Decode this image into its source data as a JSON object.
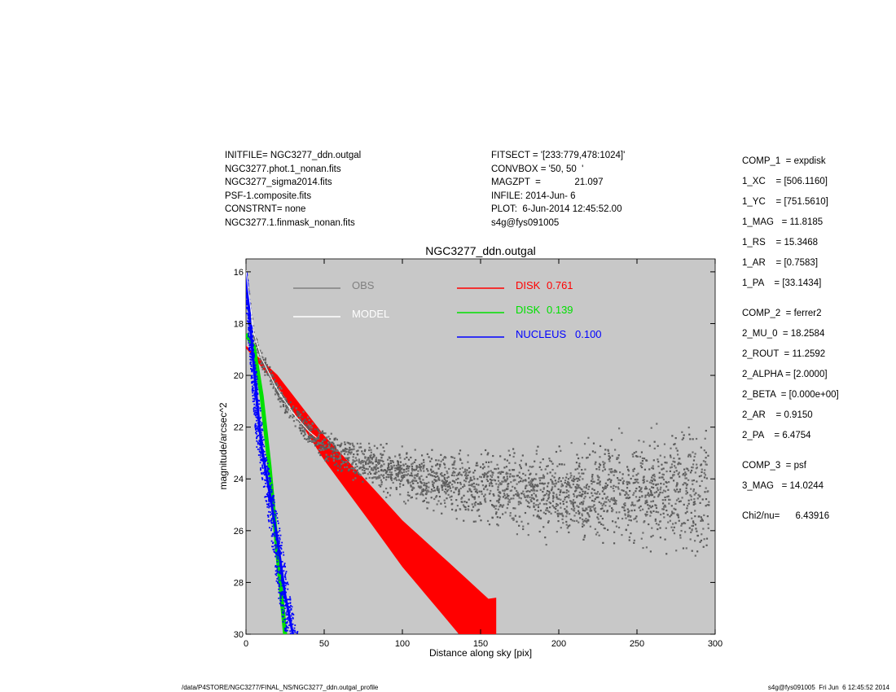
{
  "header_left": [
    "INITFILE= NGC3277_ddn.outgal",
    "NGC3277.phot.1_nonan.fits",
    "NGC3277_sigma2014.fits",
    "PSF-1.composite.fits",
    "CONSTRNT= none",
    "NGC3277.1.finmask_nonan.fits"
  ],
  "header_mid": [
    "FITSECT = '[233:779,478:1024]'",
    "CONVBOX = '50, 50  '",
    "MAGZPT  =             21.097",
    "INFILE: 2014-Jun- 6",
    "PLOT:  6-Jun-2014 12:45:52.00",
    "s4g@fys091005"
  ],
  "components": [
    "COMP_1  = expdisk",
    "1_XC    = [506.1160]",
    "1_YC    = [751.5610]",
    "1_MAG   = 11.8185",
    "1_RS    = 15.3468",
    "1_AR    = [0.7583]",
    "1_PA    = [33.1434]",
    "COMP_2  = ferrer2",
    "2_MU_0  = 18.2584",
    "2_ROUT  = 11.2592",
    "2_ALPHA = [2.0000]",
    "2_BETA  = [0.000e+00]",
    "2_AR    = 0.9150",
    "2_PA    = 6.4754",
    "COMP_3  = psf",
    "3_MAG   = 14.0244",
    "Chi2/nu=      6.43916"
  ],
  "footer": {
    "left": "/data/P4STORE/NGC3277/FINAL_NS/NGC3277_ddn.outgal_profile",
    "right": "s4g@fys091005  Fri Jun  6 12:45:52 2014"
  },
  "chart_data": {
    "type": "scatter",
    "title": "NGC3277_ddn.outgal",
    "xlabel": "Distance along sky [pix]",
    "ylabel": "magnitude/arcsec^2",
    "xlim": [
      0,
      300
    ],
    "ylim": [
      30,
      15.5
    ],
    "y_inverted": true,
    "xticks": [
      0,
      50,
      100,
      150,
      200,
      250,
      300
    ],
    "yticks": [
      16,
      18,
      20,
      22,
      24,
      26,
      28,
      30
    ],
    "background_color": "#c8c8c8",
    "grid": false,
    "legend": [
      {
        "label": "OBS",
        "value": "",
        "color": "#808080"
      },
      {
        "label": "MODEL",
        "value": "",
        "color": "#ffffff"
      },
      {
        "label": "DISK",
        "value": "0.761",
        "color": "#ff0000"
      },
      {
        "label": "DISK",
        "value": "0.139",
        "color": "#00e000"
      },
      {
        "label": "NUCLEUS",
        "value": "0.100",
        "color": "#0000ff"
      }
    ],
    "series": [
      {
        "name": "OBS",
        "color": "#707070",
        "points": [
          [
            0,
            16.0
          ],
          [
            2,
            17.0
          ],
          [
            5,
            18.4
          ],
          [
            10,
            19.4
          ],
          [
            15,
            20.0
          ],
          [
            20,
            20.6
          ],
          [
            30,
            21.5
          ],
          [
            40,
            22.2
          ],
          [
            50,
            22.7
          ],
          [
            60,
            23.0
          ],
          [
            75,
            23.4
          ],
          [
            100,
            23.8
          ],
          [
            125,
            24.1
          ],
          [
            150,
            24.3
          ],
          [
            175,
            24.5
          ],
          [
            200,
            24.6
          ],
          [
            225,
            24.6
          ],
          [
            250,
            24.5
          ],
          [
            275,
            24.4
          ],
          [
            295,
            24.6
          ]
        ]
      },
      {
        "name": "DISK 0.761",
        "color": "#ff0000",
        "points": [
          [
            0,
            18.9
          ],
          [
            20,
            20.2
          ],
          [
            50,
            22.8
          ],
          [
            80,
            25.0
          ],
          [
            100,
            26.5
          ],
          [
            130,
            28.4
          ],
          [
            155,
            30.0
          ]
        ]
      },
      {
        "name": "DISK 0.139",
        "color": "#00e000",
        "points": [
          [
            0,
            18.4
          ],
          [
            5,
            18.9
          ],
          [
            10,
            20.8
          ],
          [
            15,
            23.5
          ],
          [
            20,
            26.8
          ],
          [
            25,
            30.0
          ]
        ]
      },
      {
        "name": "NUCLEUS 0.100",
        "color": "#0000ff",
        "points": [
          [
            0,
            16.0
          ],
          [
            2,
            17.5
          ],
          [
            4,
            19.0
          ],
          [
            7,
            21.0
          ],
          [
            10,
            22.8
          ],
          [
            15,
            24.5
          ],
          [
            20,
            26.3
          ],
          [
            25,
            28.5
          ],
          [
            30,
            30.0
          ]
        ]
      }
    ]
  }
}
